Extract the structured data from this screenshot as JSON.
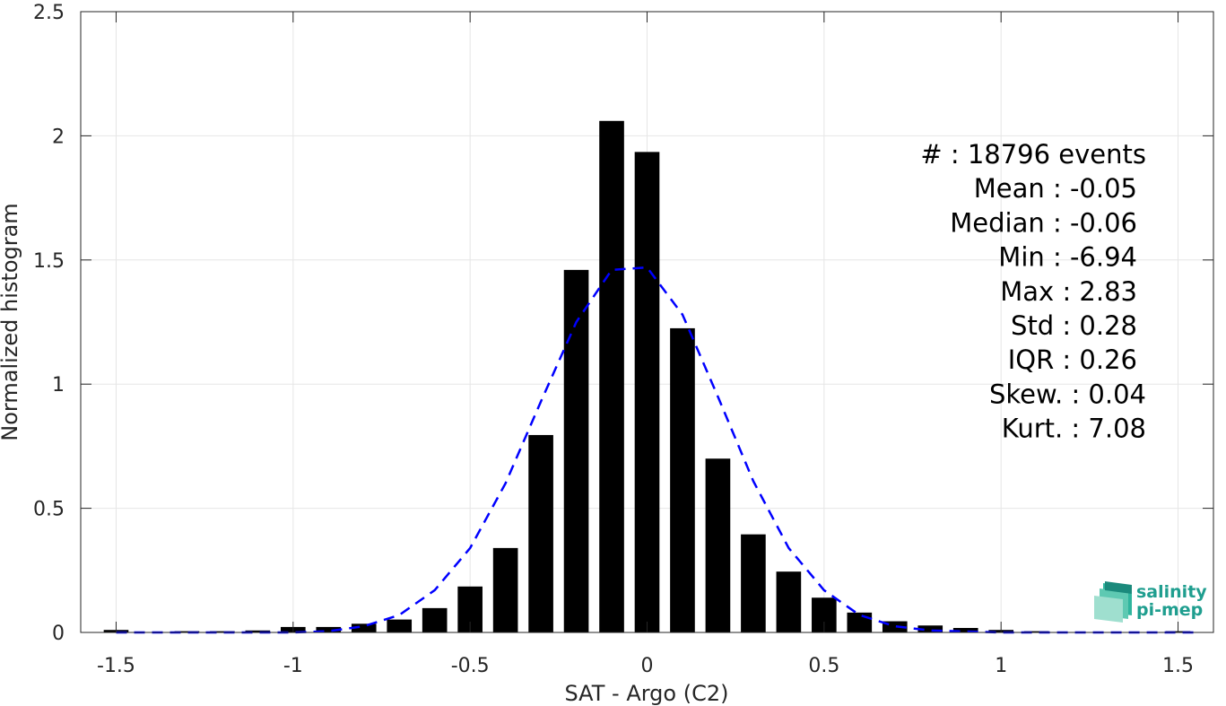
{
  "chart_data": {
    "type": "bar",
    "xlabel": "SAT - Argo (C2)",
    "ylabel": "Normalized histogram",
    "xlim": [
      -1.6,
      1.6
    ],
    "ylim": [
      0,
      2.5
    ],
    "grid": true,
    "x_ticks": [
      -1.5,
      -1,
      -0.5,
      0,
      0.5,
      1,
      1.5
    ],
    "x_tick_labels": [
      "-1.5",
      "-1",
      "-0.5",
      "0",
      "0.5",
      "1",
      "1.5"
    ],
    "y_ticks": [
      0,
      0.5,
      1,
      1.5,
      2,
      2.5
    ],
    "y_tick_labels": [
      "0",
      "0.5",
      "1",
      "1.5",
      "2",
      "2.5"
    ],
    "bar_width": 0.07,
    "bar_color": "#000000",
    "bars": [
      {
        "x": -1.5,
        "y": 0.01
      },
      {
        "x": -1.3,
        "y": 0.005
      },
      {
        "x": -1.2,
        "y": 0.005
      },
      {
        "x": -1.1,
        "y": 0.008
      },
      {
        "x": -1.0,
        "y": 0.022
      },
      {
        "x": -0.9,
        "y": 0.022
      },
      {
        "x": -0.8,
        "y": 0.035
      },
      {
        "x": -0.7,
        "y": 0.052
      },
      {
        "x": -0.6,
        "y": 0.098
      },
      {
        "x": -0.5,
        "y": 0.185
      },
      {
        "x": -0.4,
        "y": 0.34
      },
      {
        "x": -0.3,
        "y": 0.795
      },
      {
        "x": -0.2,
        "y": 1.46
      },
      {
        "x": -0.1,
        "y": 2.06
      },
      {
        "x": 0.0,
        "y": 1.935
      },
      {
        "x": 0.1,
        "y": 1.225
      },
      {
        "x": 0.2,
        "y": 0.7
      },
      {
        "x": 0.3,
        "y": 0.395
      },
      {
        "x": 0.4,
        "y": 0.245
      },
      {
        "x": 0.5,
        "y": 0.14
      },
      {
        "x": 0.6,
        "y": 0.08
      },
      {
        "x": 0.7,
        "y": 0.045
      },
      {
        "x": 0.8,
        "y": 0.028
      },
      {
        "x": 0.9,
        "y": 0.018
      },
      {
        "x": 1.0,
        "y": 0.01
      },
      {
        "x": 1.1,
        "y": 0.005
      },
      {
        "x": 1.5,
        "y": 0.005
      }
    ],
    "fit_curve": {
      "style": "dashed",
      "color": "#0000ff",
      "points": [
        [
          -1.5,
          0.0
        ],
        [
          -1.3,
          0.0
        ],
        [
          -1.1,
          0.0
        ],
        [
          -1.0,
          0.0
        ],
        [
          -0.9,
          0.005
        ],
        [
          -0.8,
          0.025
        ],
        [
          -0.7,
          0.07
        ],
        [
          -0.6,
          0.17
        ],
        [
          -0.5,
          0.34
        ],
        [
          -0.4,
          0.6
        ],
        [
          -0.3,
          0.93
        ],
        [
          -0.2,
          1.25
        ],
        [
          -0.1,
          1.46
        ],
        [
          0.0,
          1.47
        ],
        [
          0.1,
          1.28
        ],
        [
          0.2,
          0.95
        ],
        [
          0.3,
          0.61
        ],
        [
          0.4,
          0.34
        ],
        [
          0.5,
          0.17
        ],
        [
          0.6,
          0.07
        ],
        [
          0.7,
          0.025
        ],
        [
          0.8,
          0.008
        ],
        [
          1.0,
          0.0
        ],
        [
          1.3,
          0.0
        ],
        [
          1.55,
          0.0
        ]
      ]
    },
    "stats": [
      "#  : 18796 events",
      "Mean : -0.05",
      "Median : -0.06",
      "Min : -6.94",
      "Max : 2.83",
      "Std : 0.28",
      "IQR : 0.26",
      "Skew. : 0.04",
      "Kurt. : 7.08"
    ]
  },
  "logo": {
    "line1": "salinity",
    "line2": "pi-mep",
    "color": "#1f9e8f"
  }
}
